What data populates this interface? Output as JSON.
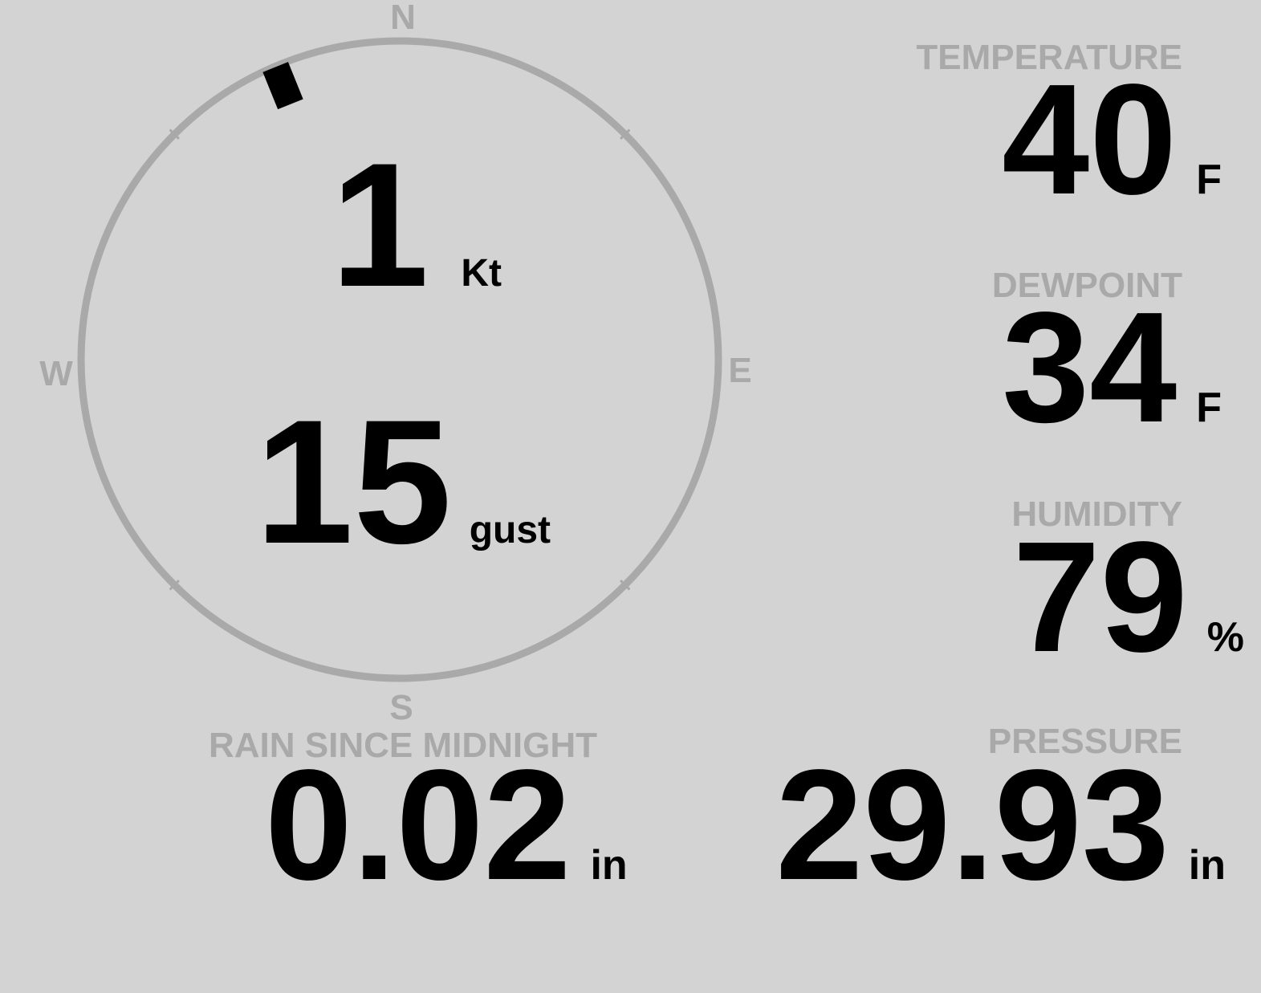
{
  "wind": {
    "speed": "1",
    "speed_unit": "Kt",
    "gust": "15",
    "gust_unit": "gust",
    "direction_deg": 338,
    "compass": {
      "n": "N",
      "e": "E",
      "s": "S",
      "w": "W"
    }
  },
  "temperature": {
    "label": "TEMPERATURE",
    "value": "40",
    "unit": "F"
  },
  "dewpoint": {
    "label": "DEWPOINT",
    "value": "34",
    "unit": "F"
  },
  "humidity": {
    "label": "HUMIDITY",
    "value": "79",
    "unit": "%"
  },
  "rain": {
    "label": "RAIN SINCE MIDNIGHT",
    "value": "0.02",
    "unit": "in"
  },
  "pressure": {
    "label": "PRESSURE",
    "value": "29.93",
    "unit": "in"
  },
  "colors": {
    "background": "#d3d3d3",
    "muted": "#a9a9a9",
    "text": "#000000"
  }
}
